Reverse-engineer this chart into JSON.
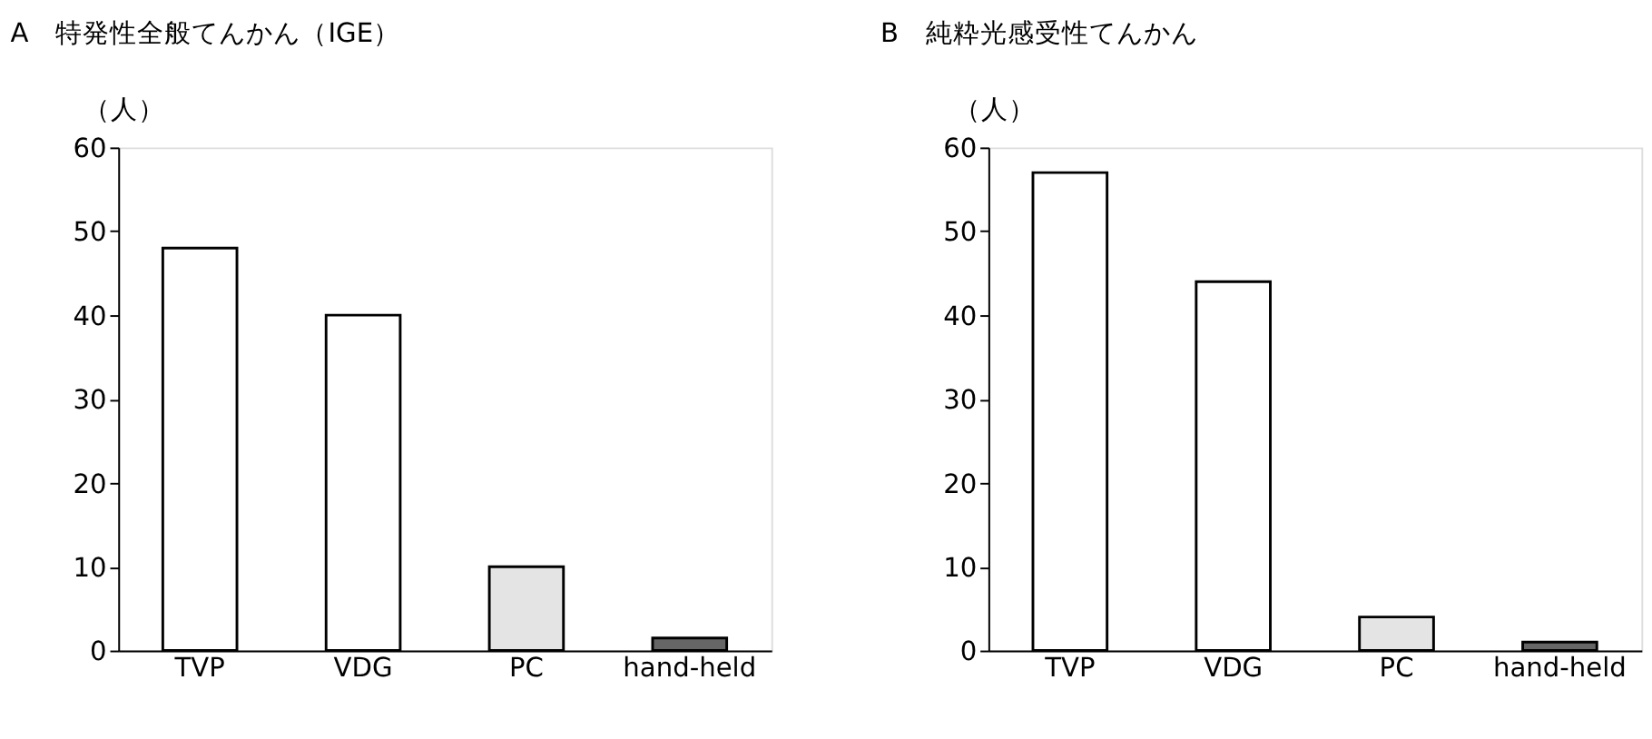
{
  "chart_data": [
    {
      "type": "bar",
      "title": "A　特発性全般てんかん（IGE）",
      "ylabel": "（人）",
      "categories": [
        "TVP",
        "VDG",
        "PC",
        "hand-held"
      ],
      "values": [
        48,
        40,
        10,
        1.5
      ],
      "colors": [
        "#ffffff",
        "#ffffff",
        "#e4e4e4",
        "#666666"
      ],
      "ylim": [
        0,
        60
      ],
      "yticks": [
        0,
        10,
        20,
        30,
        40,
        50,
        60
      ],
      "grid": false
    },
    {
      "type": "bar",
      "title": "B　純粋光感受性てんかん",
      "ylabel": "（人）",
      "categories": [
        "TVP",
        "VDG",
        "PC",
        "hand-held"
      ],
      "values": [
        57,
        44,
        4,
        1
      ],
      "colors": [
        "#ffffff",
        "#ffffff",
        "#e4e4e4",
        "#666666"
      ],
      "ylim": [
        0,
        60
      ],
      "yticks": [
        0,
        10,
        20,
        30,
        40,
        50,
        60
      ],
      "grid": false
    }
  ]
}
